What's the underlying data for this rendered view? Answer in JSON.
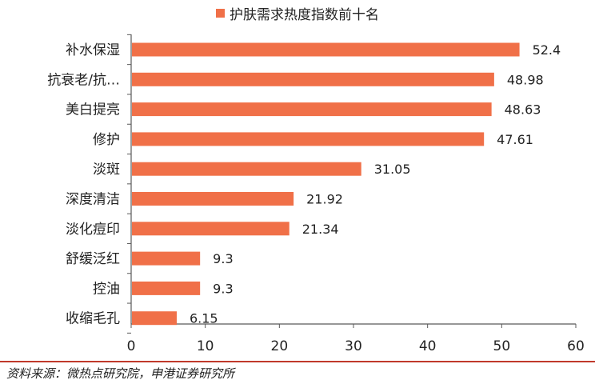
{
  "chart_data": {
    "type": "bar",
    "orientation": "horizontal",
    "legend": {
      "label": "护肤需求热度指数前十名",
      "position": "top"
    },
    "categories": [
      "补水保湿",
      "抗衰老/抗…",
      "美白提亮",
      "修护",
      "淡斑",
      "深度清洁",
      "淡化痘印",
      "舒缓泛红",
      "控油",
      "收缩毛孔"
    ],
    "values": [
      52.4,
      48.98,
      48.63,
      47.61,
      31.05,
      21.92,
      21.34,
      9.3,
      9.3,
      6.15
    ],
    "value_labels": [
      "52.4",
      "48.98",
      "48.63",
      "47.61",
      "31.05",
      "21.92",
      "21.34",
      "9.3",
      "9.3",
      "6.15"
    ],
    "xlim": [
      0,
      60
    ],
    "x_ticks": [
      "0",
      "10",
      "20",
      "30",
      "40",
      "50",
      "60"
    ],
    "grid": false,
    "colors": {
      "bar": "#f07048",
      "axis": "#595959",
      "text": "#222222",
      "source_rule": "#c0392b"
    }
  },
  "source": "资料来源：微热点研究院，申港证券研究所"
}
